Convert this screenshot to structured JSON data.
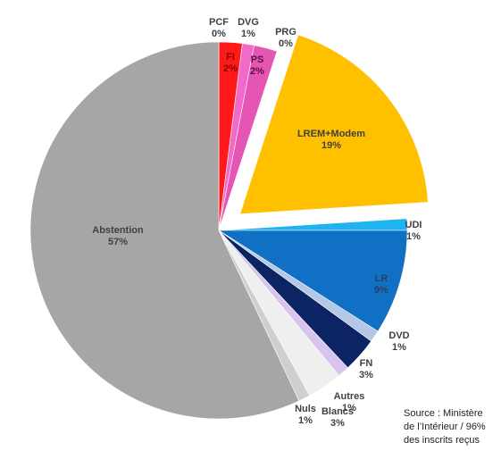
{
  "chart_data": {
    "type": "pie",
    "categories": [
      "PCF",
      "FI",
      "DVG",
      "PS",
      "PRG",
      "LREM+Modem",
      "UDI",
      "LR",
      "DVD",
      "FN",
      "Autres",
      "Blancs",
      "Nuls",
      "Abstention"
    ],
    "values": [
      0,
      2,
      1,
      2,
      0,
      19,
      1,
      9,
      1,
      3,
      1,
      3,
      1,
      57
    ],
    "value_labels": [
      "0%",
      "2%",
      "1%",
      "2%",
      "0%",
      "19%",
      "1%",
      "9%",
      "1%",
      "3%",
      "1%",
      "3%",
      "1%",
      "57%"
    ],
    "colors": [
      "#c00000",
      "#ff1a1a",
      "#f26ac8",
      "#e455b4",
      "#f5a8d8",
      "#ffc000",
      "#1fb4f0",
      "#1070c4",
      "#b4c7e7",
      "#0c2463",
      "#d8c4ec",
      "#efefef",
      "#cfcfcf",
      "#a6a6a6"
    ],
    "source": [
      "Source : Ministère",
      "de l’Intérieur / 96%",
      "des inscrits reçus"
    ]
  }
}
